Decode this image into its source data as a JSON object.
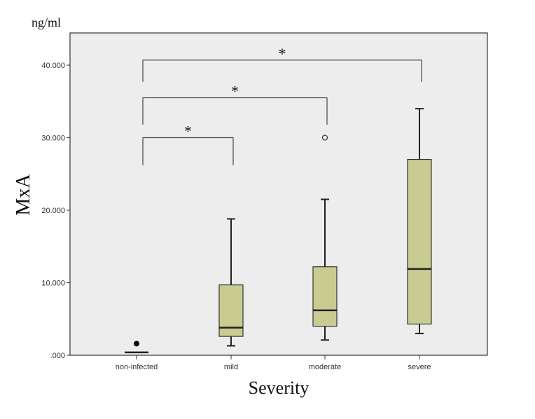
{
  "chart_data": {
    "type": "boxplot",
    "title": "",
    "unit_label": "ng/ml",
    "xlabel": "Severity",
    "ylabel": "MxA",
    "ylim": [
      0,
      44500
    ],
    "yticks": [
      0,
      10000,
      20000,
      30000,
      40000
    ],
    "ytick_labels": [
      ".000",
      "10.000",
      "20.000",
      "30.000",
      "40.000"
    ],
    "grid": false,
    "colors": {
      "box_fill": "#c9cc91",
      "plot_bg": "#ededee",
      "line": "#222222"
    },
    "categories": [
      "non-infected",
      "mild",
      "moderate",
      "severe"
    ],
    "boxes": [
      {
        "category": "non-infected",
        "min": 400,
        "q1": 400,
        "median": 400,
        "q3": 400,
        "max": 400,
        "outliers": [],
        "extremes": [
          1600
        ]
      },
      {
        "category": "mild",
        "min": 1300,
        "q1": 2600,
        "median": 3800,
        "q3": 9700,
        "max": 18800,
        "outliers": [],
        "extremes": []
      },
      {
        "category": "moderate",
        "min": 2100,
        "q1": 4000,
        "median": 6200,
        "q3": 12200,
        "max": 21500,
        "outliers": [
          30000
        ],
        "extremes": []
      },
      {
        "category": "severe",
        "min": 3000,
        "q1": 4300,
        "median": 11900,
        "q3": 27000,
        "max": 34000,
        "outliers": [],
        "extremes": []
      }
    ],
    "significance": [
      {
        "from": "non-infected",
        "to": "mild",
        "top": 30000,
        "bottom": 26200,
        "label": "*"
      },
      {
        "from": "non-infected",
        "to": "moderate",
        "top": 35500,
        "bottom": 31800,
        "label": "*"
      },
      {
        "from": "non-infected",
        "to": "severe",
        "top": 40700,
        "bottom": 37700,
        "label": "*"
      }
    ]
  }
}
